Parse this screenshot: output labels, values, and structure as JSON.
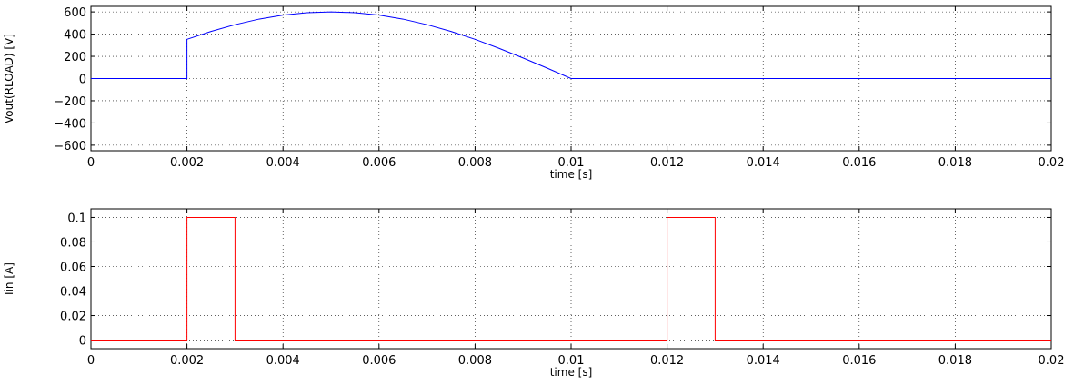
{
  "chart_data": [
    {
      "type": "line",
      "title": "",
      "xlabel": "time [s]",
      "ylabel": "Vout(RLOAD) [V]",
      "xlim": [
        0,
        0.02
      ],
      "ylim": [
        -650,
        650
      ],
      "xticks": [
        0,
        0.002,
        0.004,
        0.006,
        0.008,
        0.01,
        0.012,
        0.014,
        0.016,
        0.018,
        0.02
      ],
      "xtick_labels": [
        "0",
        "0.002",
        "0.004",
        "0.006",
        "0.008",
        "0.01",
        "0.012",
        "0.014",
        "0.016",
        "0.018",
        "0.02"
      ],
      "yticks": [
        -600,
        -400,
        -200,
        0,
        200,
        400,
        600
      ],
      "ytick_labels": [
        "−600",
        "−400",
        "−200",
        "0",
        "200",
        "400",
        "600"
      ],
      "grid": true,
      "series": [
        {
          "color": "#0000ff",
          "x": [
            0,
            0.002,
            0.002,
            0.0025,
            0.003,
            0.0035,
            0.004,
            0.0045,
            0.005,
            0.0055,
            0.006,
            0.0065,
            0.007,
            0.0075,
            0.008,
            0.0085,
            0.009,
            0.0095,
            0.01,
            0.02
          ],
          "y": [
            0,
            0,
            353,
            424,
            485,
            535,
            571,
            593,
            600,
            593,
            571,
            535,
            485,
            424,
            353,
            272,
            185,
            94,
            0,
            0
          ]
        }
      ]
    },
    {
      "type": "line",
      "title": "",
      "xlabel": "time [s]",
      "ylabel": "Iin [A]",
      "xlim": [
        0,
        0.02
      ],
      "ylim": [
        -0.007,
        0.107
      ],
      "xticks": [
        0,
        0.002,
        0.004,
        0.006,
        0.008,
        0.01,
        0.012,
        0.014,
        0.016,
        0.018,
        0.02
      ],
      "xtick_labels": [
        "0",
        "0.002",
        "0.004",
        "0.006",
        "0.008",
        "0.01",
        "0.012",
        "0.014",
        "0.016",
        "0.018",
        "0.02"
      ],
      "yticks": [
        0,
        0.02,
        0.04,
        0.06,
        0.08,
        0.1
      ],
      "ytick_labels": [
        "0",
        "0.02",
        "0.04",
        "0.06",
        "0.08",
        "0.1"
      ],
      "grid": true,
      "series": [
        {
          "color": "#ff0000",
          "x": [
            0,
            0.002,
            0.002,
            0.003,
            0.003,
            0.012,
            0.012,
            0.013,
            0.013,
            0.02
          ],
          "y": [
            0,
            0,
            0.1,
            0.1,
            0,
            0,
            0.1,
            0.1,
            0,
            0
          ]
        }
      ]
    }
  ]
}
